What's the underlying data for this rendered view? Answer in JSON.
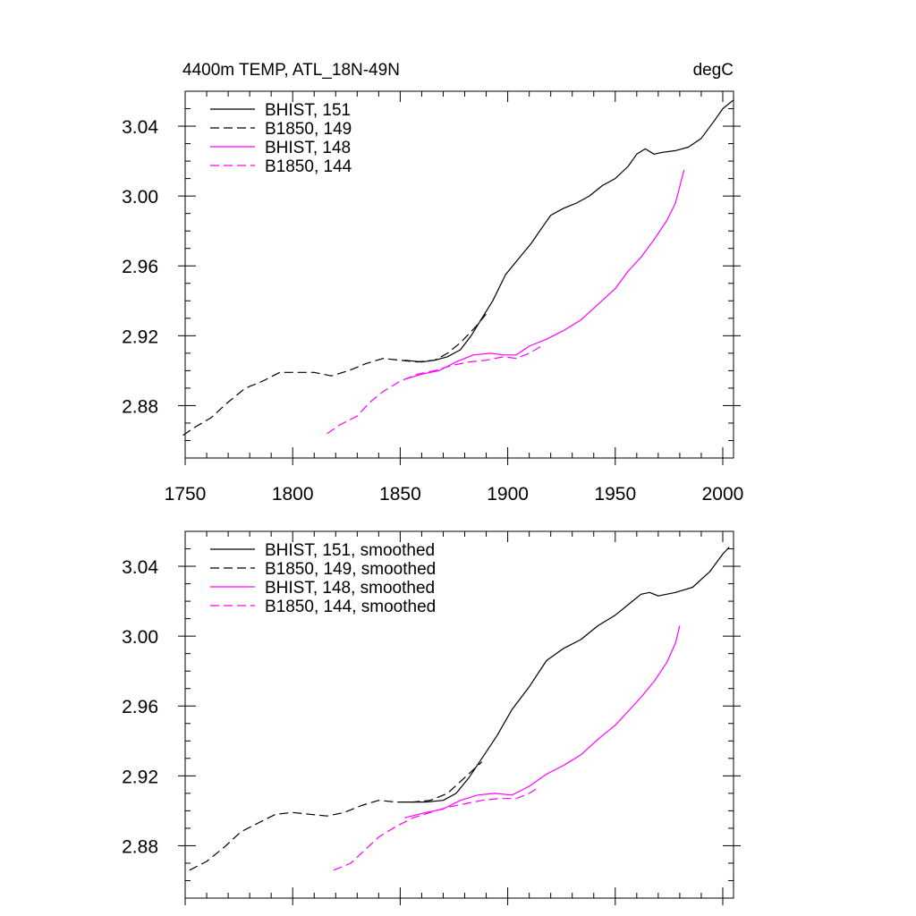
{
  "chart_data": [
    {
      "type": "line",
      "title": "4400m TEMP, ATL_18N-49N",
      "units_label": "degC",
      "xlabel": "",
      "ylabel": "",
      "xlim": [
        1750,
        2005
      ],
      "ylim": [
        2.85,
        3.06
      ],
      "x_ticks": [
        1750,
        1800,
        1850,
        1900,
        1950,
        2000
      ],
      "y_ticks": [
        2.88,
        2.92,
        2.96,
        3.0,
        3.04
      ],
      "y_tick_labels": [
        "2.88",
        "2.92",
        "2.96",
        "3.00",
        "3.04"
      ],
      "x_tick_labels_shown": true,
      "legend_position": "top-left",
      "series": [
        {
          "name": "BHIST, 151",
          "color": "#000000",
          "dash": "solid",
          "points": [
            [
              1852,
              2.906
            ],
            [
              1860,
              2.905
            ],
            [
              1866,
              2.906
            ],
            [
              1872,
              2.908
            ],
            [
              1878,
              2.912
            ],
            [
              1883,
              2.92
            ],
            [
              1888,
              2.93
            ],
            [
              1893,
              2.94
            ],
            [
              1899,
              2.955
            ],
            [
              1905,
              2.964
            ],
            [
              1911,
              2.973
            ],
            [
              1916,
              2.982
            ],
            [
              1920,
              2.989
            ],
            [
              1926,
              2.993
            ],
            [
              1932,
              2.996
            ],
            [
              1938,
              3.0
            ],
            [
              1944,
              3.006
            ],
            [
              1950,
              3.01
            ],
            [
              1956,
              3.017
            ],
            [
              1960,
              3.024
            ],
            [
              1964,
              3.027
            ],
            [
              1968,
              3.024
            ],
            [
              1972,
              3.025
            ],
            [
              1978,
              3.026
            ],
            [
              1984,
              3.028
            ],
            [
              1990,
              3.033
            ],
            [
              1996,
              3.043
            ],
            [
              2000,
              3.05
            ],
            [
              2005,
              3.055
            ]
          ]
        },
        {
          "name": "B1850, 149",
          "color": "#000000",
          "dash": "dashed",
          "points": [
            [
              1749,
              2.863
            ],
            [
              1755,
              2.868
            ],
            [
              1762,
              2.873
            ],
            [
              1770,
              2.882
            ],
            [
              1778,
              2.89
            ],
            [
              1786,
              2.894
            ],
            [
              1794,
              2.899
            ],
            [
              1802,
              2.899
            ],
            [
              1810,
              2.899
            ],
            [
              1818,
              2.897
            ],
            [
              1826,
              2.9
            ],
            [
              1834,
              2.904
            ],
            [
              1842,
              2.907
            ],
            [
              1850,
              2.906
            ],
            [
              1858,
              2.905
            ],
            [
              1866,
              2.906
            ],
            [
              1872,
              2.91
            ],
            [
              1878,
              2.916
            ],
            [
              1885,
              2.925
            ],
            [
              1891,
              2.934
            ]
          ]
        },
        {
          "name": "BHIST, 148",
          "color": "#ff00ff",
          "dash": "solid",
          "points": [
            [
              1852,
              2.895
            ],
            [
              1860,
              2.898
            ],
            [
              1868,
              2.9
            ],
            [
              1876,
              2.905
            ],
            [
              1884,
              2.909
            ],
            [
              1892,
              2.91
            ],
            [
              1898,
              2.909
            ],
            [
              1904,
              2.909
            ],
            [
              1910,
              2.914
            ],
            [
              1918,
              2.918
            ],
            [
              1926,
              2.923
            ],
            [
              1934,
              2.929
            ],
            [
              1942,
              2.938
            ],
            [
              1950,
              2.947
            ],
            [
              1956,
              2.957
            ],
            [
              1962,
              2.965
            ],
            [
              1968,
              2.975
            ],
            [
              1974,
              2.986
            ],
            [
              1978,
              2.996
            ],
            [
              1982,
              3.015
            ]
          ]
        },
        {
          "name": "B1850, 144",
          "color": "#ff00ff",
          "dash": "dashed",
          "points": [
            [
              1816,
              2.864
            ],
            [
              1822,
              2.869
            ],
            [
              1830,
              2.874
            ],
            [
              1836,
              2.882
            ],
            [
              1842,
              2.888
            ],
            [
              1850,
              2.894
            ],
            [
              1858,
              2.898
            ],
            [
              1866,
              2.9
            ],
            [
              1874,
              2.903
            ],
            [
              1882,
              2.905
            ],
            [
              1890,
              2.906
            ],
            [
              1898,
              2.908
            ],
            [
              1904,
              2.907
            ],
            [
              1910,
              2.91
            ],
            [
              1917,
              2.915
            ]
          ]
        }
      ]
    },
    {
      "type": "line",
      "title": "",
      "xlabel": "",
      "ylabel": "",
      "xlim": [
        1750,
        2005
      ],
      "ylim": [
        2.85,
        3.06
      ],
      "x_ticks": [
        1750,
        1800,
        1850,
        1900,
        1950,
        2000
      ],
      "y_ticks": [
        2.88,
        2.92,
        2.96,
        3.0,
        3.04
      ],
      "y_tick_labels": [
        "2.88",
        "2.92",
        "2.96",
        "3.00",
        "3.04"
      ],
      "x_tick_labels_shown": false,
      "legend_position": "top-left",
      "series": [
        {
          "name": "BHIST, 151, smoothed",
          "color": "#000000",
          "dash": "solid",
          "points": [
            [
              1852,
              2.905
            ],
            [
              1862,
              2.905
            ],
            [
              1870,
              2.906
            ],
            [
              1876,
              2.91
            ],
            [
              1882,
              2.919
            ],
            [
              1888,
              2.93
            ],
            [
              1895,
              2.943
            ],
            [
              1902,
              2.958
            ],
            [
              1910,
              2.971
            ],
            [
              1918,
              2.986
            ],
            [
              1926,
              2.993
            ],
            [
              1934,
              2.998
            ],
            [
              1942,
              3.006
            ],
            [
              1950,
              3.012
            ],
            [
              1956,
              3.018
            ],
            [
              1962,
              3.024
            ],
            [
              1966,
              3.025
            ],
            [
              1970,
              3.023
            ],
            [
              1978,
              3.025
            ],
            [
              1986,
              3.028
            ],
            [
              1994,
              3.037
            ],
            [
              2000,
              3.047
            ],
            [
              2003,
              3.051
            ]
          ]
        },
        {
          "name": "B1850, 149, smoothed",
          "color": "#000000",
          "dash": "dashed",
          "points": [
            [
              1752,
              2.866
            ],
            [
              1760,
              2.871
            ],
            [
              1768,
              2.879
            ],
            [
              1776,
              2.888
            ],
            [
              1784,
              2.893
            ],
            [
              1792,
              2.898
            ],
            [
              1800,
              2.899
            ],
            [
              1808,
              2.898
            ],
            [
              1816,
              2.897
            ],
            [
              1824,
              2.899
            ],
            [
              1832,
              2.903
            ],
            [
              1840,
              2.906
            ],
            [
              1848,
              2.905
            ],
            [
              1856,
              2.905
            ],
            [
              1864,
              2.906
            ],
            [
              1872,
              2.91
            ],
            [
              1880,
              2.919
            ],
            [
              1888,
              2.928
            ]
          ]
        },
        {
          "name": "BHIST, 148, smoothed",
          "color": "#ff00ff",
          "dash": "solid",
          "points": [
            [
              1852,
              2.896
            ],
            [
              1862,
              2.899
            ],
            [
              1870,
              2.901
            ],
            [
              1878,
              2.906
            ],
            [
              1886,
              2.909
            ],
            [
              1894,
              2.91
            ],
            [
              1902,
              2.909
            ],
            [
              1910,
              2.914
            ],
            [
              1918,
              2.921
            ],
            [
              1926,
              2.926
            ],
            [
              1934,
              2.932
            ],
            [
              1942,
              2.941
            ],
            [
              1950,
              2.949
            ],
            [
              1956,
              2.957
            ],
            [
              1962,
              2.965
            ],
            [
              1968,
              2.974
            ],
            [
              1974,
              2.985
            ],
            [
              1978,
              2.996
            ],
            [
              1980,
              3.006
            ]
          ]
        },
        {
          "name": "B1850, 144, smoothed",
          "color": "#ff00ff",
          "dash": "dashed",
          "points": [
            [
              1819,
              2.866
            ],
            [
              1827,
              2.87
            ],
            [
              1834,
              2.878
            ],
            [
              1840,
              2.885
            ],
            [
              1848,
              2.891
            ],
            [
              1856,
              2.896
            ],
            [
              1864,
              2.899
            ],
            [
              1872,
              2.902
            ],
            [
              1880,
              2.904
            ],
            [
              1888,
              2.906
            ],
            [
              1896,
              2.907
            ],
            [
              1904,
              2.907
            ],
            [
              1910,
              2.91
            ],
            [
              1914,
              2.913
            ]
          ]
        }
      ]
    }
  ]
}
